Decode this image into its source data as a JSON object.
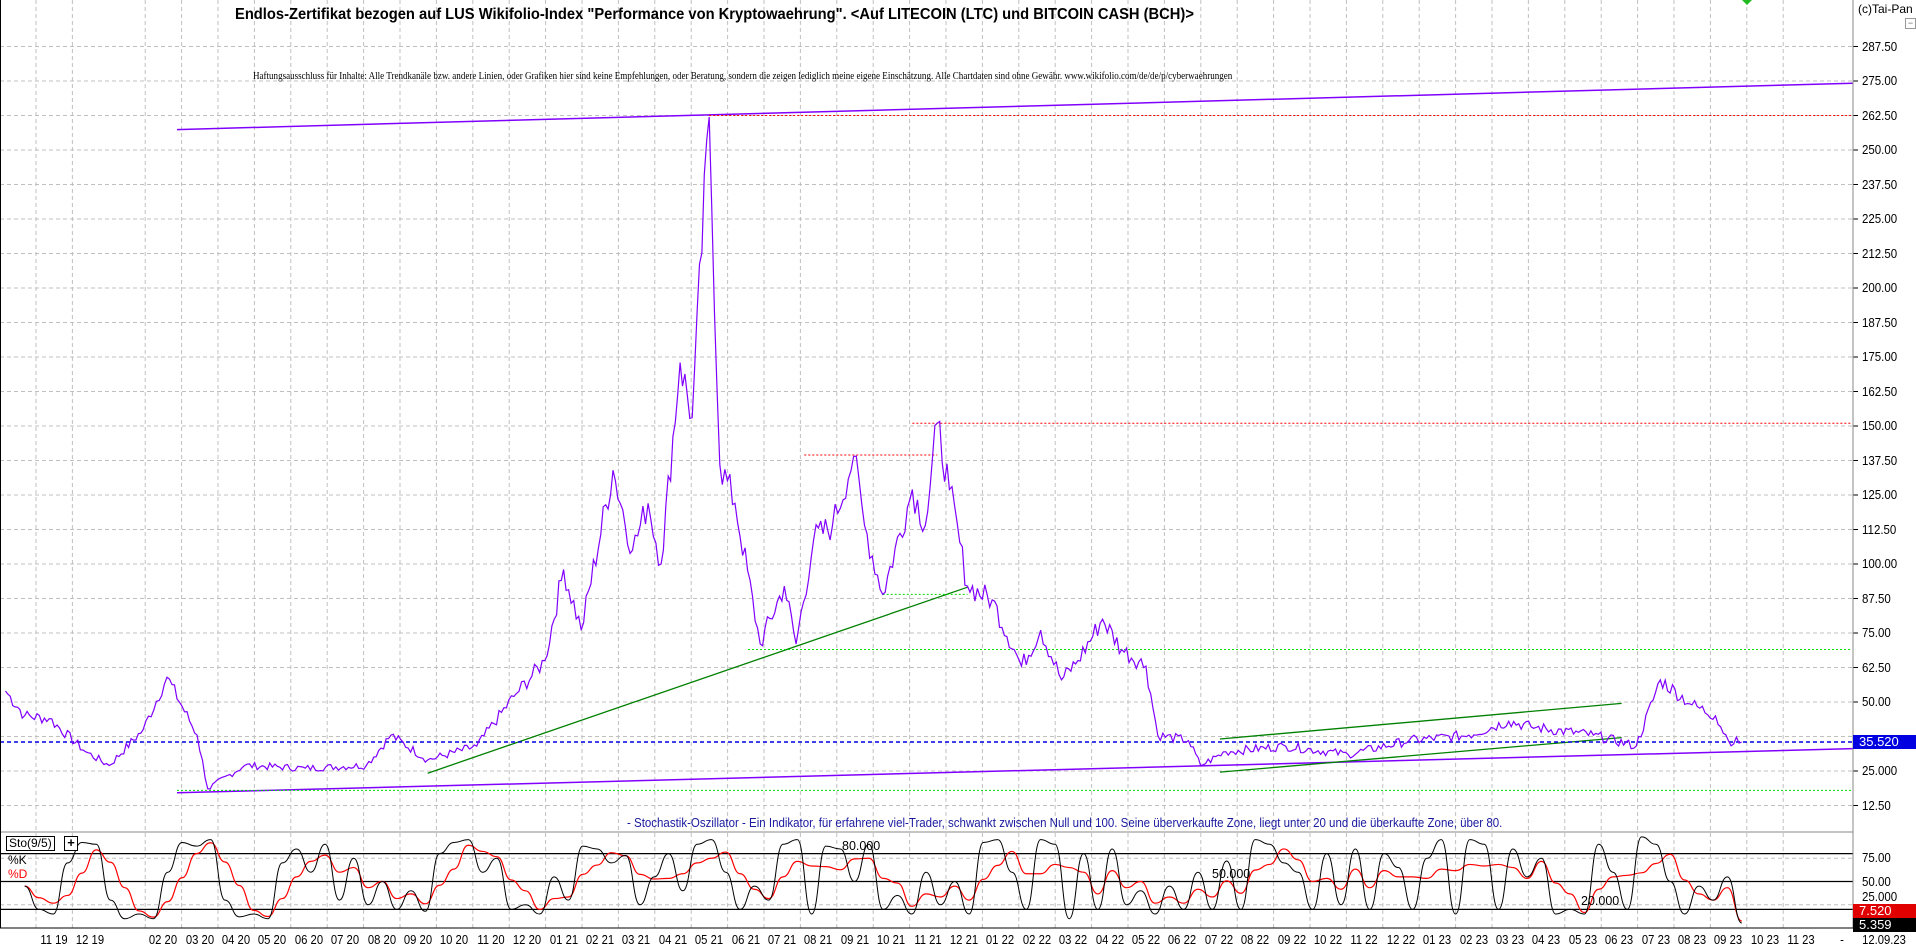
{
  "header": {
    "title": "Endlos-Zertifikat bezogen auf LUS Wikifolio-Index \"Performance von Kryptowaehrung\". <Auf LITECOIN (LTC) und BITCOIN CASH (BCH)>",
    "disclaimer": "Haftungsausschluss für Inhalte: Alle Trendkanäle bzw. andere Linien, oder Grafiken hier sind keine Empfehlungen, oder Beratung, sondern die zeigen lediglich meine eigene Einschätzung. Alle Chartdaten sind ohne Gewähr.  www.wikifolio.com/de/de/p/cyberwaehrungen",
    "copyright": "(c)Tai-Pan"
  },
  "colors": {
    "price": "#8000ff",
    "trend_purple": "#8000ff",
    "trend_green": "#008000",
    "level_red": "#ff0000",
    "level_green": "#00dd00",
    "last_price": "#0000e0",
    "k_line": "#000000",
    "d_line": "#ff0000",
    "grid": "#c0c0c0"
  },
  "chart_data": [
    {
      "type": "line",
      "title": "",
      "ylim": [
        0,
        300
      ],
      "y_ticks": [
        "12.50",
        "25.000",
        "37.500",
        "50.00",
        "62.50",
        "75.00",
        "87.50",
        "100.00",
        "112.50",
        "125.00",
        "137.50",
        "150.00",
        "162.50",
        "175.00",
        "187.50",
        "200.00",
        "212.50",
        "225.00",
        "237.50",
        "250.00",
        "262.50",
        "275.00",
        "287.50"
      ],
      "x_ticks": [
        {
          "date": "2019-11-01",
          "label": "11 19"
        },
        {
          "date": "2019-12-01",
          "label": "12 19"
        },
        {
          "date": "2020-02-01",
          "label": "02 20"
        },
        {
          "date": "2020-03-01",
          "label": "03 20"
        },
        {
          "date": "2020-04-01",
          "label": "04 20"
        },
        {
          "date": "2020-05-01",
          "label": "05 20"
        },
        {
          "date": "2020-06-01",
          "label": "06 20"
        },
        {
          "date": "2020-07-01",
          "label": "07 20"
        },
        {
          "date": "2020-08-01",
          "label": "08 20"
        },
        {
          "date": "2020-09-01",
          "label": "09 20"
        },
        {
          "date": "2020-10-01",
          "label": "10 20"
        },
        {
          "date": "2020-11-01",
          "label": "11 20"
        },
        {
          "date": "2020-12-01",
          "label": "12 20"
        },
        {
          "date": "2021-01-01",
          "label": "01 21"
        },
        {
          "date": "2021-02-01",
          "label": "02 21"
        },
        {
          "date": "2021-03-01",
          "label": "03 21"
        },
        {
          "date": "2021-04-01",
          "label": "04 21"
        },
        {
          "date": "2021-05-01",
          "label": "05 21"
        },
        {
          "date": "2021-06-01",
          "label": "06 21"
        },
        {
          "date": "2021-07-01",
          "label": "07 21"
        },
        {
          "date": "2021-08-01",
          "label": "08 21"
        },
        {
          "date": "2021-09-01",
          "label": "09 21"
        },
        {
          "date": "2021-10-01",
          "label": "10 21"
        },
        {
          "date": "2021-11-01",
          "label": "11 21"
        },
        {
          "date": "2021-12-01",
          "label": "12 21"
        },
        {
          "date": "2022-01-01",
          "label": "01 22"
        },
        {
          "date": "2022-02-01",
          "label": "02 22"
        },
        {
          "date": "2022-03-01",
          "label": "03 22"
        },
        {
          "date": "2022-04-01",
          "label": "04 22"
        },
        {
          "date": "2022-05-01",
          "label": "05 22"
        },
        {
          "date": "2022-06-01",
          "label": "06 22"
        },
        {
          "date": "2022-07-01",
          "label": "07 22"
        },
        {
          "date": "2022-08-01",
          "label": "08 22"
        },
        {
          "date": "2022-09-01",
          "label": "09 22"
        },
        {
          "date": "2022-10-01",
          "label": "10 22"
        },
        {
          "date": "2022-11-01",
          "label": "11 22"
        },
        {
          "date": "2022-12-01",
          "label": "12 22"
        },
        {
          "date": "2023-01-01",
          "label": "01 23"
        },
        {
          "date": "2023-02-01",
          "label": "02 23"
        },
        {
          "date": "2023-03-01",
          "label": "03 23"
        },
        {
          "date": "2023-04-01",
          "label": "04 23"
        },
        {
          "date": "2023-05-01",
          "label": "05 23"
        },
        {
          "date": "2023-06-01",
          "label": "06 23"
        },
        {
          "date": "2023-07-01",
          "label": "07 23"
        },
        {
          "date": "2023-08-01",
          "label": "08 23"
        },
        {
          "date": "2023-09-01",
          "label": "09 23"
        },
        {
          "date": "2023-10-01",
          "label": "10 23"
        },
        {
          "date": "2023-11-01",
          "label": "11 23"
        }
      ],
      "x_end_label": "12.09.23",
      "x_separator": "-",
      "grid": true,
      "series": [
        {
          "points": [
            [
              "2019-09-21",
              54
            ],
            [
              "2019-10-07",
              45
            ],
            [
              "2019-10-28",
              44
            ],
            [
              "2019-11-27",
              32
            ],
            [
              "2019-12-17",
              27
            ],
            [
              "2020-01-15",
              40
            ],
            [
              "2020-02-04",
              59
            ],
            [
              "2020-02-28",
              38
            ],
            [
              "2020-03-08",
              18.5
            ],
            [
              "2020-04-08",
              27
            ],
            [
              "2020-05-29",
              26
            ],
            [
              "2020-07-19",
              27
            ],
            [
              "2020-08-09",
              38
            ],
            [
              "2020-09-09",
              29
            ],
            [
              "2020-10-20",
              34
            ],
            [
              "2020-11-20",
              52
            ],
            [
              "2020-12-16",
              65
            ],
            [
              "2021-01-01",
              98
            ],
            [
              "2021-01-16",
              76
            ],
            [
              "2021-02-11",
              134
            ],
            [
              "2021-02-26",
              105
            ],
            [
              "2021-03-11",
              122
            ],
            [
              "2021-03-22",
              100
            ],
            [
              "2021-04-07",
              173
            ],
            [
              "2021-04-17",
              153
            ],
            [
              "2021-05-01",
              262
            ],
            [
              "2021-05-10",
              136
            ],
            [
              "2021-05-23",
              122
            ],
            [
              "2021-06-13",
              71
            ],
            [
              "2021-07-03",
              92
            ],
            [
              "2021-07-13",
              71
            ],
            [
              "2021-07-28",
              109
            ],
            [
              "2021-08-13",
              114
            ],
            [
              "2021-08-31",
              139
            ],
            [
              "2021-09-09",
              114
            ],
            [
              "2021-09-24",
              89
            ],
            [
              "2021-10-19",
              127
            ],
            [
              "2021-10-30",
              114
            ],
            [
              "2021-11-09",
              151
            ],
            [
              "2021-11-19",
              127
            ],
            [
              "2021-12-04",
              92
            ],
            [
              "2021-12-25",
              87
            ],
            [
              "2022-01-19",
              63
            ],
            [
              "2022-02-04",
              76
            ],
            [
              "2022-02-20",
              58
            ],
            [
              "2022-03-05",
              65
            ],
            [
              "2022-03-26",
              80
            ],
            [
              "2022-04-11",
              69
            ],
            [
              "2022-05-01",
              63
            ],
            [
              "2022-05-11",
              38
            ],
            [
              "2022-06-06",
              36
            ],
            [
              "2022-06-16",
              27
            ],
            [
              "2022-07-07",
              32
            ],
            [
              "2022-08-27",
              34
            ],
            [
              "2022-10-18",
              31
            ],
            [
              "2022-12-08",
              36
            ],
            [
              "2023-01-28",
              38
            ],
            [
              "2023-02-28",
              43
            ],
            [
              "2023-03-19",
              41
            ],
            [
              "2023-05-10",
              38
            ],
            [
              "2023-06-15",
              34
            ],
            [
              "2023-07-05",
              58
            ],
            [
              "2023-08-01",
              49
            ],
            [
              "2023-08-21",
              45
            ],
            [
              "2023-09-01",
              36
            ],
            [
              "2023-09-12",
              35.52
            ]
          ]
        }
      ],
      "last_value": "35.520",
      "annotations": {
        "purple_lines": [
          {
            "from": [
              "2020-02-12",
              257.4
            ],
            "to": [
              "2023-12-14",
              274.2
            ]
          },
          {
            "from": [
              "2020-02-12",
              17.1
            ],
            "to": [
              "2023-12-14",
              33.1
            ]
          }
        ],
        "green_lines": [
          {
            "from": [
              "2020-09-09",
              24.2
            ],
            "to": [
              "2021-12-04",
              91.6
            ]
          },
          {
            "from": [
              "2022-07-02",
              36.6
            ],
            "to": [
              "2023-06-03",
              49.5
            ]
          },
          {
            "from": [
              "2022-07-02",
              24.6
            ],
            "to": [
              "2023-06-03",
              37.1
            ]
          }
        ],
        "red_levels": [
          {
            "value": 262.5,
            "from": "2021-05-01"
          },
          {
            "value": 151,
            "from": "2021-10-19"
          },
          {
            "value": 139.5,
            "from": "2021-07-20",
            "to": "2021-11-09"
          }
        ],
        "green_levels": [
          {
            "value": 69,
            "from": "2021-06-03"
          },
          {
            "value": 89,
            "from": "2021-09-24",
            "to": "2021-12-04"
          },
          {
            "value": 18,
            "from": "2020-02-12"
          }
        ],
        "blue_level": 35.52
      }
    },
    {
      "type": "line",
      "indicator": "Sto(9/5)",
      "description": "- Stochastik-Oszillator - Ein Indikator, für erfahrene viel-Trader, schwankt zwischen Null und 100. Seine überverkaufte Zone, liegt unter 20 und die überkaufte Zone, über 80.",
      "ylim": [
        0,
        100
      ],
      "y_ticks": [
        "25.000",
        "50.00",
        "75.00"
      ],
      "levels": [
        80,
        50,
        20
      ],
      "level_labels": [
        "80.000",
        "50.000",
        "20.000"
      ],
      "start": "2019-10-07",
      "end": "2023-09-12",
      "series": [
        {
          "name": "%K",
          "k_values": [
            45,
            20,
            15,
            70,
            92,
            90,
            30,
            10,
            15,
            10,
            60,
            92,
            88,
            95,
            30,
            12,
            15,
            10,
            70,
            85,
            60,
            90,
            30,
            75,
            25,
            50,
            20,
            40,
            18,
            80,
            92,
            95,
            60,
            75,
            20,
            25,
            15,
            55,
            30,
            88,
            85,
            70,
            78,
            25,
            55,
            80,
            40,
            90,
            95,
            60,
            20,
            45,
            30,
            90,
            95,
            15,
            88,
            85,
            50,
            90,
            20,
            35,
            15,
            60,
            25,
            50,
            15,
            92,
            95,
            60,
            20,
            95,
            90,
            10,
            80,
            20,
            85,
            25,
            40,
            15,
            45,
            20,
            60,
            20,
            72,
            20,
            95,
            90,
            70,
            60,
            20,
            80,
            25,
            85,
            20,
            80,
            65,
            20,
            75,
            95,
            15,
            95,
            90,
            20,
            85,
            55,
            75,
            15,
            20,
            15,
            90,
            60,
            20,
            98,
            90,
            50,
            15,
            45,
            30,
            55,
            5.359
          ]
        },
        {
          "name": "%D"
        }
      ],
      "last_d": "7.520",
      "last_k": "5.359"
    }
  ]
}
